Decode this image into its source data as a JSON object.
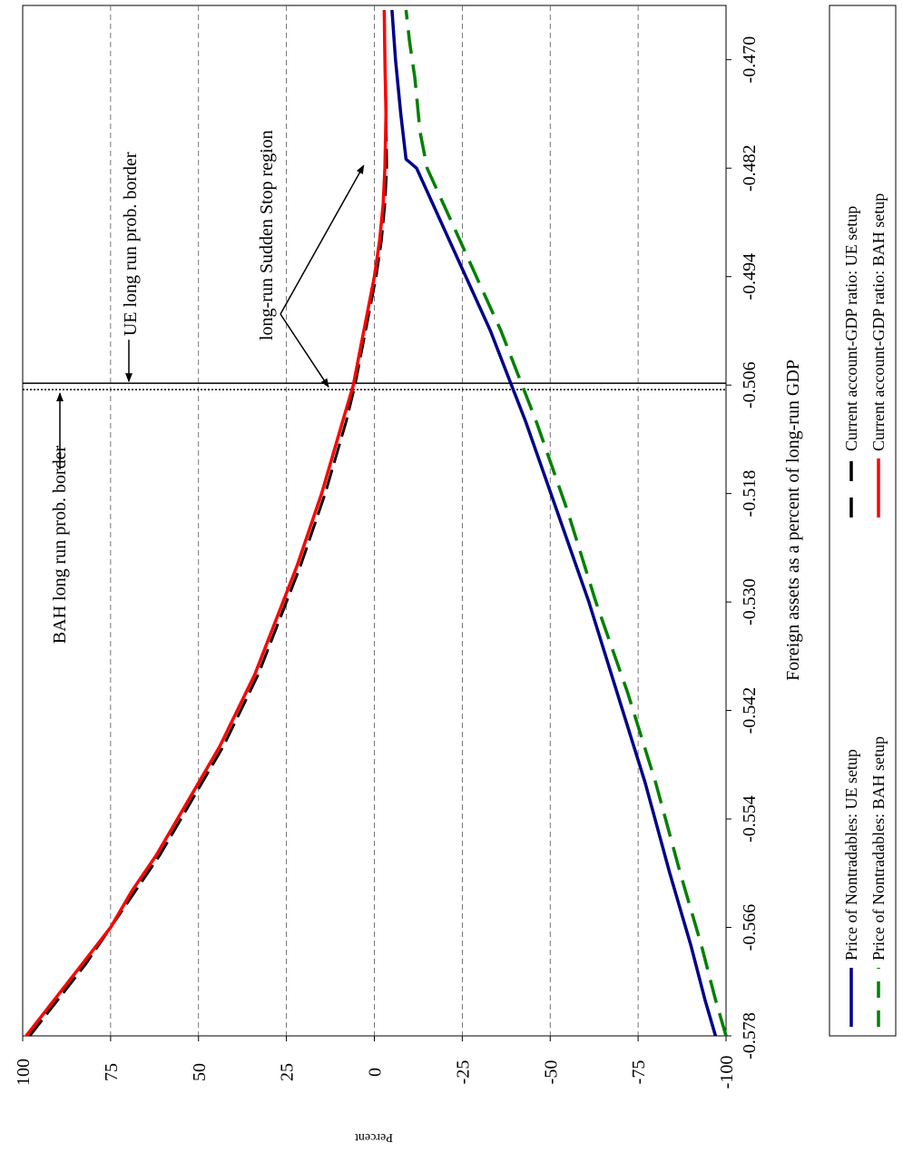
{
  "chart_data": {
    "type": "line",
    "orientation": "rotated-90-counterclockwise",
    "xlabel": "Foreign assets as a percent of long-run GDP",
    "ylabel": "Percent",
    "xlim": [
      -0.578,
      -0.464
    ],
    "ylim": [
      -100,
      100
    ],
    "x_ticks": [
      "-0.470",
      "-0.482",
      "-0.494",
      "-0.506",
      "-0.518",
      "-0.530",
      "-0.542",
      "-0.554",
      "-0.566",
      "-0.578"
    ],
    "x_tick_values": [
      -0.47,
      -0.482,
      -0.494,
      -0.506,
      -0.518,
      -0.53,
      -0.542,
      -0.554,
      -0.566,
      -0.578
    ],
    "y_ticks": [
      "100",
      "75",
      "50",
      "25",
      "0",
      "-25",
      "-50",
      "-75",
      "-100"
    ],
    "y_tick_values": [
      100,
      75,
      50,
      25,
      0,
      -25,
      -50,
      -75,
      -100
    ],
    "grid": "dashed lines at y ticks",
    "legend_position": "bottom (right side of rotated page)",
    "series": [
      {
        "name": "Price of Nontradables: UE setup",
        "color": "#00008b",
        "dash": "solid",
        "x": [
          -0.578,
          -0.574,
          -0.568,
          -0.56,
          -0.55,
          -0.54,
          -0.53,
          -0.52,
          -0.51,
          -0.506,
          -0.5,
          -0.494,
          -0.488,
          -0.482,
          -0.481,
          -0.476,
          -0.47,
          -0.4645
        ],
        "y": [
          -97,
          -94,
          -90,
          -84,
          -77,
          -69,
          -61,
          -52,
          -43,
          -39,
          -33,
          -26,
          -19,
          -12,
          -9,
          -7.5,
          -6,
          -5
        ]
      },
      {
        "name": "Price of Nontradables: BAH setup",
        "color": "#008000",
        "dash": "dashed",
        "x": [
          -0.578,
          -0.574,
          -0.568,
          -0.56,
          -0.55,
          -0.54,
          -0.53,
          -0.52,
          -0.51,
          -0.506,
          -0.5,
          -0.494,
          -0.488,
          -0.482,
          -0.478,
          -0.472,
          -0.468,
          -0.4645
        ],
        "y": [
          -100,
          -97,
          -93,
          -87,
          -80,
          -72,
          -63,
          -55,
          -46,
          -42,
          -36,
          -29,
          -22,
          -15,
          -13,
          -11.5,
          -10,
          -9
        ]
      },
      {
        "name": "Current account-GDP ratio: UE setup",
        "color": "#000000",
        "dash": "dashed",
        "x": [
          -0.578,
          -0.574,
          -0.57,
          -0.566,
          -0.562,
          -0.558,
          -0.554,
          -0.55,
          -0.546,
          -0.542,
          -0.538,
          -0.534,
          -0.53,
          -0.526,
          -0.522,
          -0.518,
          -0.514,
          -0.51,
          -0.506,
          -0.502,
          -0.498,
          -0.494,
          -0.49,
          -0.486,
          -0.482,
          -0.476,
          -0.47,
          -0.4645
        ],
        "y": [
          98,
          90,
          82,
          75,
          68,
          61,
          55,
          49,
          43,
          38,
          33,
          29,
          25,
          21,
          17.5,
          14,
          11,
          8,
          5.5,
          3.5,
          1.5,
          -0.5,
          -2,
          -3,
          -3.5,
          -3.3,
          -3.0,
          -2.8
        ]
      },
      {
        "name": "Current account-GDP ratio: BAH setup",
        "color": "#ff0000",
        "dash": "solid",
        "x": [
          -0.578,
          -0.574,
          -0.57,
          -0.566,
          -0.562,
          -0.558,
          -0.554,
          -0.55,
          -0.546,
          -0.542,
          -0.538,
          -0.534,
          -0.53,
          -0.526,
          -0.522,
          -0.518,
          -0.514,
          -0.51,
          -0.506,
          -0.502,
          -0.498,
          -0.494,
          -0.49,
          -0.486,
          -0.482,
          -0.476,
          -0.47,
          -0.4645
        ],
        "y": [
          99,
          91,
          83,
          75,
          69,
          62,
          56,
          50,
          44,
          39,
          34,
          30,
          26,
          22,
          18.5,
          15,
          12,
          9,
          6,
          4,
          2,
          0,
          -1.5,
          -2.5,
          -3,
          -3.3,
          -3.0,
          -2.8
        ]
      }
    ],
    "reference_lines": [
      {
        "name": "UE long run prob. border",
        "x": -0.5058,
        "style": "solid",
        "label": "UE long run prob. border"
      },
      {
        "name": "BAH long run prob. border",
        "x": -0.5065,
        "style": "dotted",
        "label": "BAH long run prob. border"
      }
    ],
    "annotations": {
      "sudden_stop_label": "long-run Sudden Stop region",
      "sudden_stop_points": [
        {
          "x": -0.506,
          "y": 12
        },
        {
          "x": -0.4815,
          "y": 2
        }
      ]
    }
  }
}
